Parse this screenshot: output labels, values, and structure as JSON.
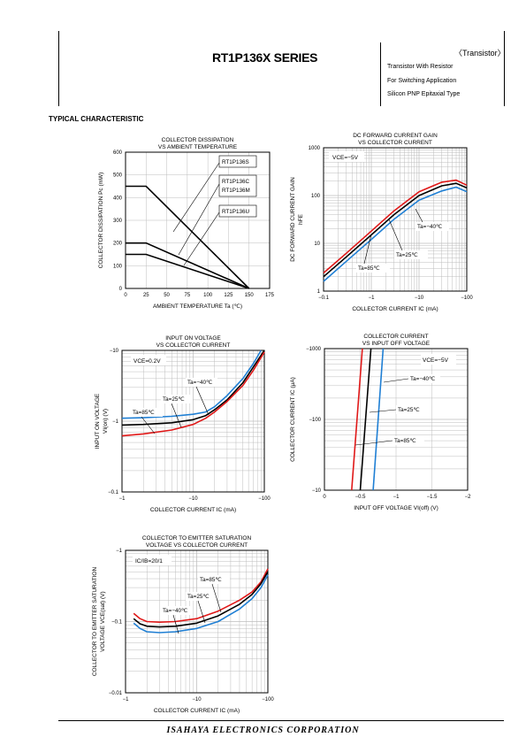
{
  "header": {
    "title": "RT1P136X SERIES",
    "tag": "〈Transistor〉",
    "lines": [
      "Transistor With Resistor",
      "For Switching Application",
      "Silicon PNP Epitaxial Type"
    ]
  },
  "section_title": "TYPICAL CHARACTERISTIC",
  "footer": "ISAHAYA ELECTRONICS CORPORATION",
  "colors": {
    "ta_neg40": "#1f7fd4",
    "ta_25": "#000000",
    "ta_85": "#e01818"
  },
  "chart_data": [
    {
      "type": "line",
      "title": [
        "COLLECTOR DISSIPATION",
        "VS AMBIENT TEMPERATURE"
      ],
      "xlabel": "AMBIENT TEMPERATURE Ta (℃)",
      "ylabel": "COLLECTOR DISSIPATION Pc (mW)",
      "xlim": [
        0,
        175
      ],
      "ylim": [
        0,
        600
      ],
      "xticks": [
        "0",
        "25",
        "50",
        "75",
        "100",
        "125",
        "150",
        "175"
      ],
      "yticks": [
        "0",
        "100",
        "200",
        "300",
        "400",
        "500",
        "600"
      ],
      "series": [
        {
          "name": "RT1P136S",
          "x": [
            0,
            25,
            150
          ],
          "y": [
            450,
            450,
            0
          ]
        },
        {
          "name": "RT1P136C / RT1P136M",
          "x": [
            0,
            25,
            150
          ],
          "y": [
            200,
            200,
            0
          ]
        },
        {
          "name": "RT1P136U",
          "x": [
            0,
            25,
            150
          ],
          "y": [
            150,
            150,
            0
          ]
        }
      ],
      "labels": [
        "RT1P136S",
        "RT1P136C",
        "RT1P136M",
        "RT1P136U"
      ]
    },
    {
      "type": "line",
      "title": [
        "DC FORWARD CURRENT GAIN",
        "VS COLLECTOR CURRENT"
      ],
      "xlabel": "COLLECTOR CURRENT IC (mA)",
      "ylabel": [
        "DC FORWARD CURRENT GAIN",
        "hFE"
      ],
      "xscale": "log",
      "yscale": "log",
      "xlim": [
        -0.1,
        -100
      ],
      "ylim": [
        1,
        1000
      ],
      "xticks": [
        "−0.1",
        "−1",
        "−10",
        "−100"
      ],
      "yticks": [
        "1",
        "10",
        "100",
        "1000"
      ],
      "condition": "VCE=−5V",
      "annotations": [
        "Ta=−40℃",
        "Ta=25℃",
        "Ta=85℃"
      ],
      "series": [
        {
          "name": "Ta=85℃",
          "x": [
            -0.1,
            -0.3,
            -1,
            -3,
            -10,
            -30,
            -60,
            -100
          ],
          "y": [
            2.4,
            6.2,
            18,
            48,
            120,
            190,
            210,
            165
          ]
        },
        {
          "name": "Ta=25℃",
          "x": [
            -0.1,
            -0.3,
            -1,
            -3,
            -10,
            -30,
            -60,
            -100
          ],
          "y": [
            2.0,
            5.2,
            15,
            40,
            100,
            160,
            180,
            145
          ]
        },
        {
          "name": "Ta=−40℃",
          "x": [
            -0.1,
            -0.3,
            -1,
            -3,
            -10,
            -30,
            -60,
            -100
          ],
          "y": [
            1.6,
            4.2,
            12,
            32,
            80,
            125,
            150,
            120
          ]
        }
      ]
    },
    {
      "type": "line",
      "title": [
        "INPUT ON VOLTAGE",
        "VS COLLECTOR CURRENT"
      ],
      "xlabel": "COLLECTOR CURRENT IC (mA)",
      "ylabel": [
        "INPUT ON VOLTAGE",
        "VI(on) (V)"
      ],
      "xscale": "log",
      "yscale": "log",
      "xlim": [
        -1,
        -100
      ],
      "ylim": [
        -0.1,
        -10
      ],
      "xticks": [
        "−1",
        "−10",
        "−100"
      ],
      "yticks": [
        "−0.1",
        "−1",
        "−10"
      ],
      "condition": "VCE=0.2V",
      "annotations": [
        "Ta=−40℃",
        "Ta=25℃",
        "Ta=85℃"
      ],
      "series": [
        {
          "name": "Ta=−40℃",
          "x": [
            -1,
            -2,
            -5,
            -10,
            -15,
            -20,
            -30,
            -50,
            -70,
            -90
          ],
          "y": [
            -1.1,
            -1.12,
            -1.17,
            -1.25,
            -1.35,
            -1.6,
            -2.3,
            -4.0,
            -6.5,
            -10
          ]
        },
        {
          "name": "Ta=25℃",
          "x": [
            -1,
            -2,
            -5,
            -10,
            -15,
            -20,
            -30,
            -50,
            -70,
            -100
          ],
          "y": [
            -0.88,
            -0.9,
            -0.95,
            -1.05,
            -1.2,
            -1.45,
            -2.0,
            -3.5,
            -5.8,
            -10
          ]
        },
        {
          "name": "Ta=85℃",
          "x": [
            -1,
            -2,
            -5,
            -10,
            -15,
            -20,
            -30,
            -50,
            -70,
            -100
          ],
          "y": [
            -0.62,
            -0.66,
            -0.75,
            -0.9,
            -1.1,
            -1.35,
            -1.9,
            -3.2,
            -5.2,
            -9.5
          ]
        }
      ]
    },
    {
      "type": "line",
      "title": [
        "COLLECTOR CURRENT",
        "VS INPUT OFF VOLTAGE"
      ],
      "xlabel": "INPUT OFF VOLTAGE VI(off) (V)",
      "ylabel": "COLLECTOR CURRENT IC (μA)",
      "yscale": "log",
      "xlim": [
        0,
        -2
      ],
      "ylim": [
        -10,
        -1000
      ],
      "xticks": [
        "0",
        "−0.5",
        "−1",
        "−1.5",
        "−2"
      ],
      "yticks": [
        "−10",
        "−100",
        "−1000"
      ],
      "condition": "VCE=−5V",
      "annotations": [
        "Ta=−40℃",
        "Ta=25℃",
        "Ta=85℃"
      ],
      "series": [
        {
          "name": "Ta=85℃",
          "x": [
            -0.38,
            -0.53
          ],
          "y": [
            -10,
            -1000
          ]
        },
        {
          "name": "Ta=25℃",
          "x": [
            -0.5,
            -0.65
          ],
          "y": [
            -10,
            -1000
          ]
        },
        {
          "name": "Ta=−40℃",
          "x": [
            -0.68,
            -0.82
          ],
          "y": [
            -10,
            -1000
          ]
        }
      ]
    },
    {
      "type": "line",
      "title": [
        "COLLECTOR TO EMITTER SATURATION",
        "VOLTAGE VS COLLECTOR CURRENT"
      ],
      "xlabel": "COLLECTOR CURRENT IC (mA)",
      "ylabel": [
        "COLLECTOR TO EMITTER SATURATION",
        "VOLTAGE VCE(sat) (V)"
      ],
      "xscale": "log",
      "yscale": "log",
      "xlim": [
        -1,
        -100
      ],
      "ylim": [
        -0.01,
        -1
      ],
      "xticks": [
        "−1",
        "−10",
        "−100"
      ],
      "yticks": [
        "−0.01",
        "−0.1",
        "−1"
      ],
      "condition": "IC/IB=20/1",
      "annotations": [
        "Ta=85℃",
        "Ta=25℃",
        "Ta=−40℃"
      ],
      "series": [
        {
          "name": "Ta=85℃",
          "x": [
            -1.3,
            -1.6,
            -2,
            -3,
            -5,
            -10,
            -20,
            -40,
            -60,
            -80,
            -100
          ],
          "y": [
            -0.13,
            -0.11,
            -0.1,
            -0.098,
            -0.1,
            -0.11,
            -0.14,
            -0.2,
            -0.26,
            -0.36,
            -0.55
          ]
        },
        {
          "name": "Ta=25℃",
          "x": [
            -1.3,
            -1.6,
            -2,
            -3,
            -5,
            -10,
            -20,
            -40,
            -60,
            -80,
            -100
          ],
          "y": [
            -0.11,
            -0.093,
            -0.086,
            -0.084,
            -0.086,
            -0.095,
            -0.12,
            -0.175,
            -0.24,
            -0.34,
            -0.5
          ]
        },
        {
          "name": "Ta=−40℃",
          "x": [
            -1.3,
            -1.6,
            -2,
            -3,
            -5,
            -10,
            -20,
            -40,
            -60,
            -80,
            -100
          ],
          "y": [
            -0.095,
            -0.08,
            -0.072,
            -0.07,
            -0.072,
            -0.08,
            -0.1,
            -0.15,
            -0.21,
            -0.3,
            -0.45
          ]
        }
      ]
    }
  ]
}
